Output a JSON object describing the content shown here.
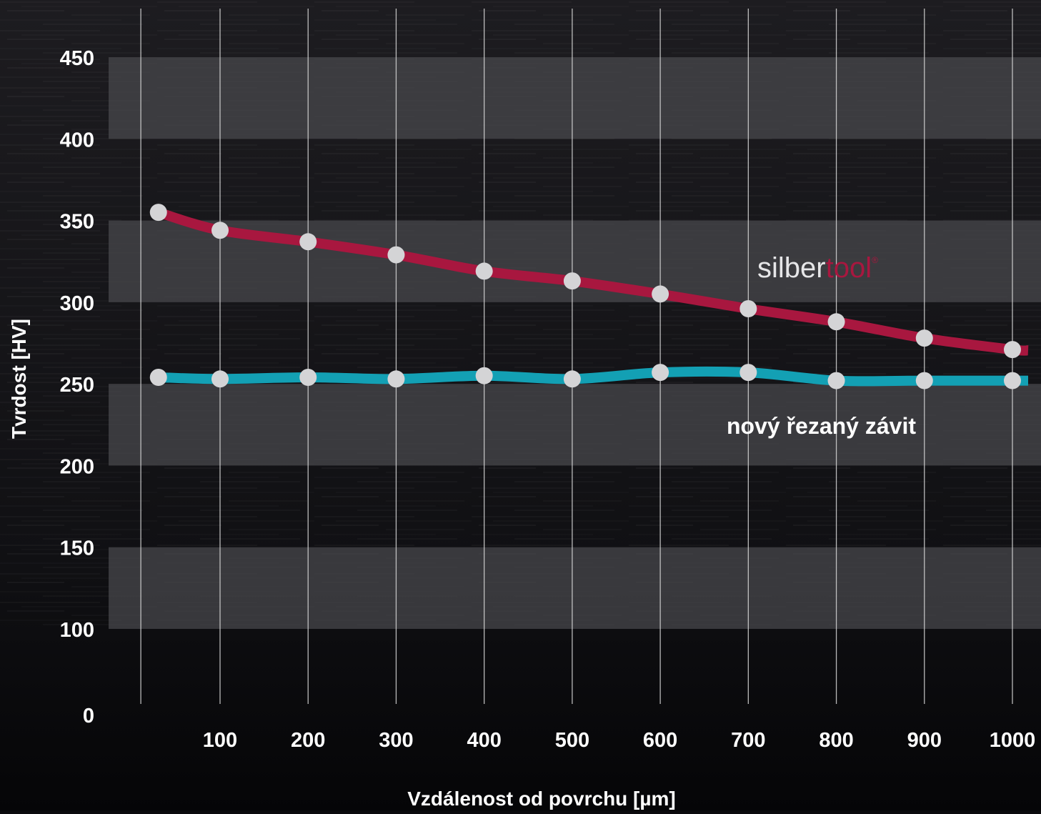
{
  "colors": {
    "background": "#0b0a0d",
    "band": "#4a4a4e",
    "grid": "#d8d8d8",
    "text": "#ffffff",
    "marker": "#d4d4d6",
    "silbertool_series": "#a8173f",
    "cut_thread_series": "#13a0b4"
  },
  "chart_data": {
    "type": "line",
    "xlabel": "Vzdálenost od povrchu [µm]",
    "ylabel": "Tvrdost  [HV]",
    "x_ticks": [
      "100",
      "200",
      "300",
      "400",
      "500",
      "600",
      "700",
      "800",
      "900",
      "1000"
    ],
    "y_ticks": [
      "0",
      "100",
      "150",
      "200",
      "250",
      "300",
      "350",
      "400",
      "450"
    ],
    "x": [
      30,
      100,
      200,
      300,
      400,
      500,
      600,
      700,
      800,
      900,
      1000
    ],
    "series": [
      {
        "name_parts": [
          "silber",
          "tool",
          "®"
        ],
        "values": [
          355,
          344,
          337,
          329,
          319,
          313,
          305,
          296,
          288,
          278,
          271
        ]
      },
      {
        "name": "nový řezaný závit",
        "values": [
          254,
          253,
          254,
          253,
          255,
          253,
          257,
          257,
          252,
          252,
          252
        ]
      }
    ],
    "grid": "vertical lines",
    "legend": "labels on the right side next to the lines"
  }
}
